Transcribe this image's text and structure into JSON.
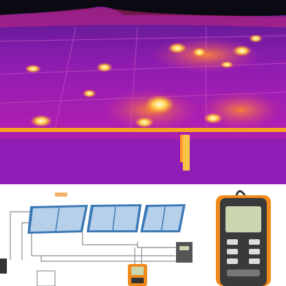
{
  "image": {
    "thermal_panel": {
      "subject": "thermal-image-solar-panels-with-hotspots",
      "colors": {
        "sky": "#0b0a12",
        "cool": "#4b1880",
        "panel": "#a21ab7",
        "warm": "#e0469a",
        "hot": "#f7a521",
        "hottest": "#fff6c6"
      }
    },
    "diagram_panel": {
      "subject": "solar-pv-array-with-clamp-meter-and-multimeter",
      "colors": {
        "background": "#ffffff",
        "panel_frame": "#3a78b6",
        "panel_cell": "#b7d0e9",
        "wire": "#7a7a7a",
        "meter_body": "#f08a1c",
        "meter_screen": "#c9d6b0",
        "device_dark": "#333333"
      }
    }
  }
}
